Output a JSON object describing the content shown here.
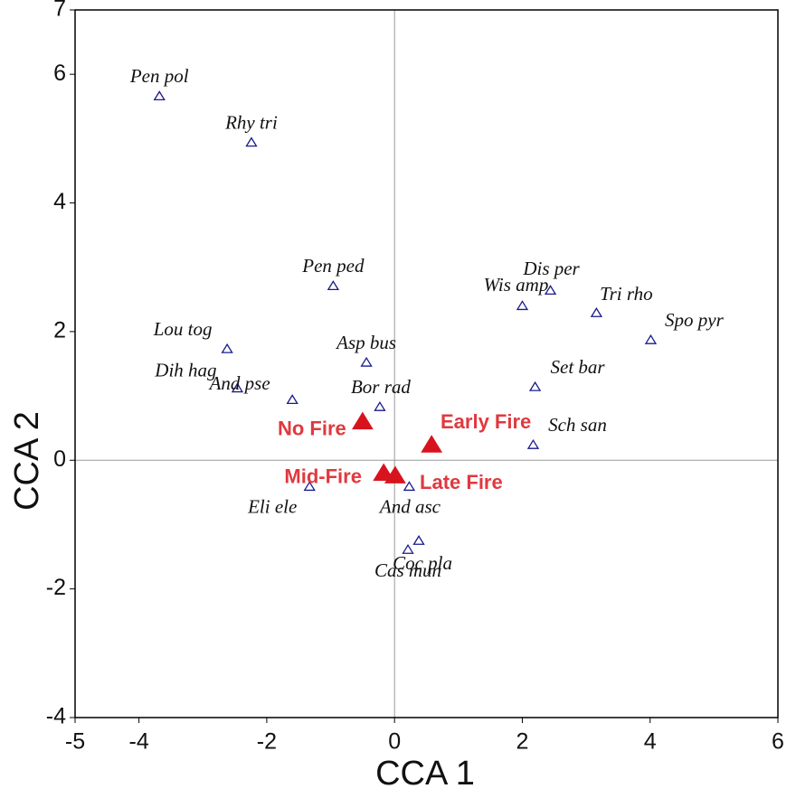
{
  "chart_data": {
    "type": "scatter",
    "x_label": "CCA 1",
    "y_label": "CCA 2",
    "xlim": [
      -5,
      6
    ],
    "ylim": [
      -4,
      7
    ],
    "xticks": [
      -5,
      -4,
      -2,
      0,
      2,
      4,
      6
    ],
    "yticks": [
      -4,
      -2,
      0,
      2,
      4,
      6,
      7
    ],
    "zero_lines": true,
    "series": [
      {
        "color": "#1a1a8c",
        "marker": "open-triangle",
        "labels": [
          "Pen pol",
          "Rhy tri",
          "Pen ped",
          "Lou tog",
          "Dih hag",
          "And pse",
          "Asp bus",
          "Bor rad",
          "Wis amp",
          "Dis per",
          "Tri rho",
          "Spo pyr",
          "Set bar",
          "Sch san",
          "Eli ele",
          "And asc",
          "Coc pla",
          "Cas mun"
        ],
        "x": [
          -3.68,
          -2.24,
          -0.96,
          -2.62,
          -2.46,
          -1.6,
          -0.44,
          -0.23,
          2.0,
          2.44,
          3.16,
          4.01,
          2.2,
          2.17,
          -1.33,
          0.23,
          0.38,
          0.21
        ],
        "values": [
          5.66,
          4.94,
          2.71,
          1.73,
          1.12,
          0.94,
          1.52,
          0.83,
          2.4,
          2.64,
          2.29,
          1.87,
          1.14,
          0.24,
          -0.41,
          -0.41,
          -1.25,
          -1.39
        ]
      },
      {
        "color": "#d7141e",
        "marker": "filled-triangle",
        "labels": [
          "No Fire",
          "Early Fire",
          "Mid-Fire",
          "Late Fire"
        ],
        "x": [
          -0.5,
          0.58,
          -0.17,
          0.01
        ],
        "values": [
          0.6,
          0.24,
          -0.2,
          -0.24
        ]
      }
    ]
  }
}
